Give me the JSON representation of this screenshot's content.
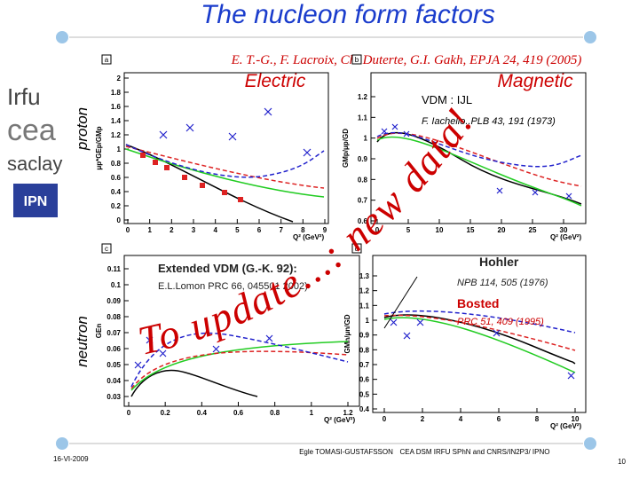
{
  "header": {
    "title": "The nucleon form factors",
    "reference": "E. T.-G., F. Lacroix, Ch. Duterte, G.I. Gakh,  EPJA 24, 419 (2005)"
  },
  "columns": [
    "Electric",
    "Magnetic"
  ],
  "rows": [
    "proton",
    "neutron"
  ],
  "logos": [
    "Irfu",
    "cea",
    "saclay",
    "IPN"
  ],
  "overlay": "To update...: new data!",
  "annotations": {
    "vdm": "VDM : IJL",
    "iachello": "F. Iachello..PLB 43, 191 (1973)",
    "extended": "Extended VDM (G.-K. 92):",
    "lomon": "E.L.Lomon PRC 66, 045501 2002)",
    "hohler": "Hohler",
    "hohler_ref": "NPB 114, 505 (1976)",
    "bosted": "Bosted",
    "bosted_ref": "PRC 51, 409 (1995)"
  },
  "panels": [
    {
      "label": "a",
      "ylabel": "μp*GEp/GMp",
      "xlabel": "Q² (GeV²)",
      "xticks": [
        0,
        1,
        2,
        3,
        4,
        5,
        6,
        7,
        8,
        9
      ],
      "yticks": [
        0,
        0.2,
        0.4,
        0.6,
        0.8,
        1,
        1.2,
        1.4,
        1.6,
        1.8,
        2
      ]
    },
    {
      "label": "b",
      "ylabel": "GMp/μp/GD",
      "xlabel": "Q² (GeV²)",
      "xticks": [
        0,
        5,
        10,
        15,
        20,
        25,
        30
      ],
      "yticks": [
        0.6,
        0.7,
        0.8,
        0.9,
        1,
        1.1,
        1.2
      ]
    },
    {
      "label": "c",
      "ylabel": "GEn",
      "xlabel": "Q² (GeV²)",
      "xticks": [
        0,
        0.2,
        0.4,
        0.6,
        0.8,
        1,
        1.2
      ],
      "yticks": [
        0.03,
        0.04,
        0.05,
        0.06,
        0.07,
        0.08,
        0.09,
        0.1,
        0.11
      ]
    },
    {
      "label": "d",
      "ylabel": "GMn/μn/GD",
      "xlabel": "Q² (GeV²)",
      "xticks": [
        0,
        2,
        4,
        6,
        8,
        10
      ],
      "yticks": [
        0.4,
        0.5,
        0.6,
        0.7,
        0.8,
        0.9,
        1,
        1.1,
        1.2,
        1.3
      ]
    }
  ],
  "footer": {
    "date": "16-VI-2009",
    "author": "Egle TOMASI-GUSTAFSSON",
    "affiliation": "CEA DSM IRFU SPhN and  CNRS/IN2P3/ IPNO",
    "page": "10"
  }
}
